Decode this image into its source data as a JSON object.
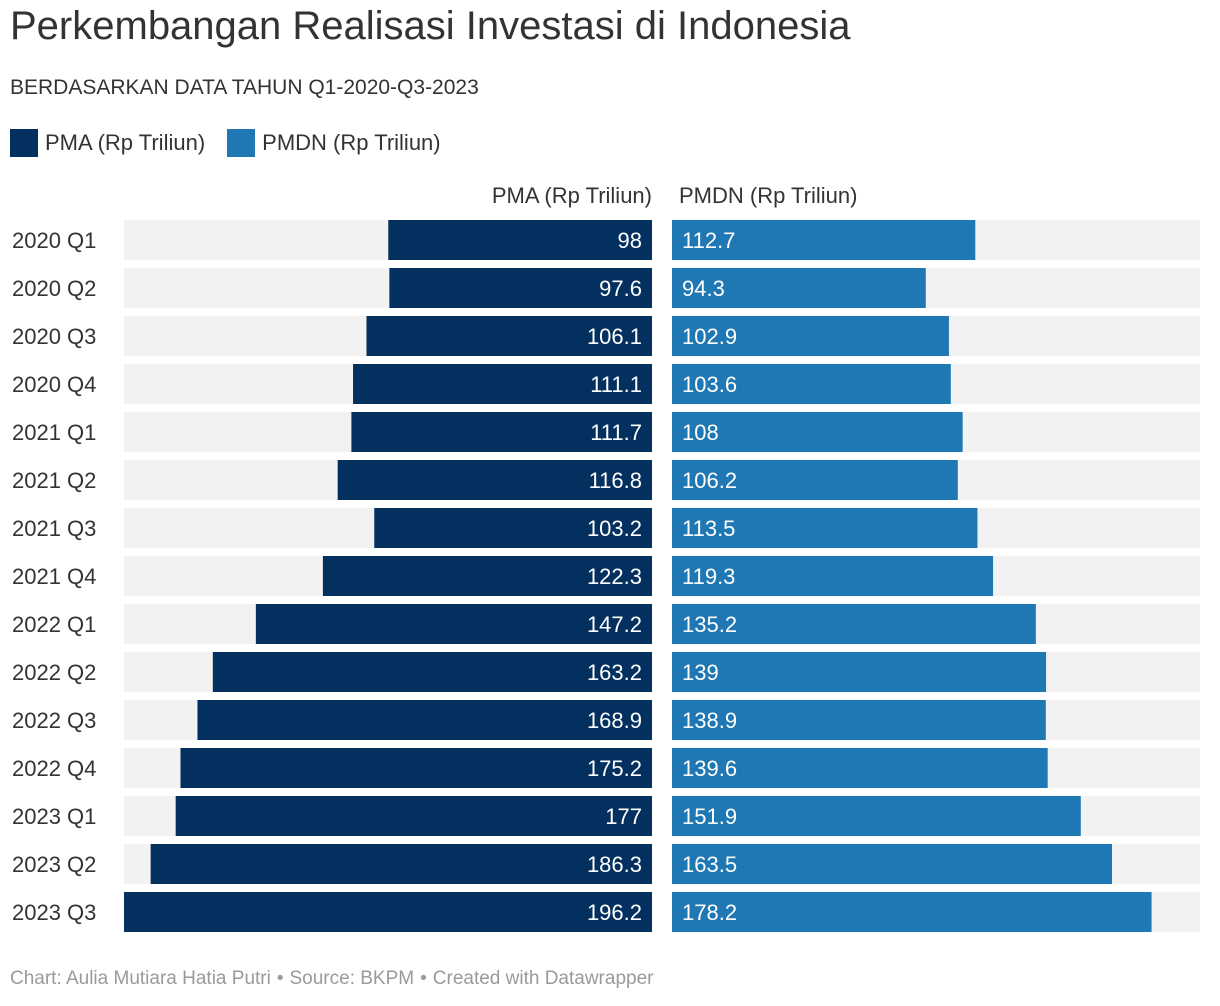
{
  "title": "Perkembangan Realisasi Investasi di Indonesia",
  "subtitle": "BERDASARKAN DATA TAHUN Q1-2020-Q3-2023",
  "colors": {
    "pma": "#04305f",
    "pmdn": "#1f77b4",
    "track": "#f2f2f2",
    "text": "#333333",
    "muted": "#9a9a9a"
  },
  "legend": [
    {
      "label": "PMA (Rp Triliun)",
      "color": "#04305f"
    },
    {
      "label": "PMDN (Rp Triliun)",
      "color": "#1f77b4"
    }
  ],
  "chart_data": {
    "type": "bar",
    "orientation": "horizontal-split",
    "categories": [
      "2020 Q1",
      "2020 Q2",
      "2020 Q3",
      "2020 Q4",
      "2021 Q1",
      "2021 Q2",
      "2021 Q3",
      "2021 Q4",
      "2022 Q1",
      "2022 Q2",
      "2022 Q3",
      "2022 Q4",
      "2023 Q1",
      "2023 Q2",
      "2023 Q3"
    ],
    "series": [
      {
        "name": "PMA (Rp Triliun)",
        "color": "#04305f",
        "values": [
          98,
          97.6,
          106.1,
          111.1,
          111.7,
          116.8,
          103.2,
          122.3,
          147.2,
          163.2,
          168.9,
          175.2,
          177,
          186.3,
          196.2
        ]
      },
      {
        "name": "PMDN (Rp Triliun)",
        "color": "#1f77b4",
        "values": [
          112.7,
          94.3,
          102.9,
          103.6,
          108,
          106.2,
          113.5,
          119.3,
          135.2,
          139,
          138.9,
          139.6,
          151.9,
          163.5,
          178.2
        ]
      }
    ],
    "xlim": [
      0,
      196.2
    ],
    "grid": false,
    "legend_position": "top-left"
  },
  "footer": {
    "chart_credit": "Chart: Aulia Mutiara Hatia Putri",
    "source": "Source: BKPM",
    "tool": "Created with Datawrapper",
    "separator": "•"
  }
}
